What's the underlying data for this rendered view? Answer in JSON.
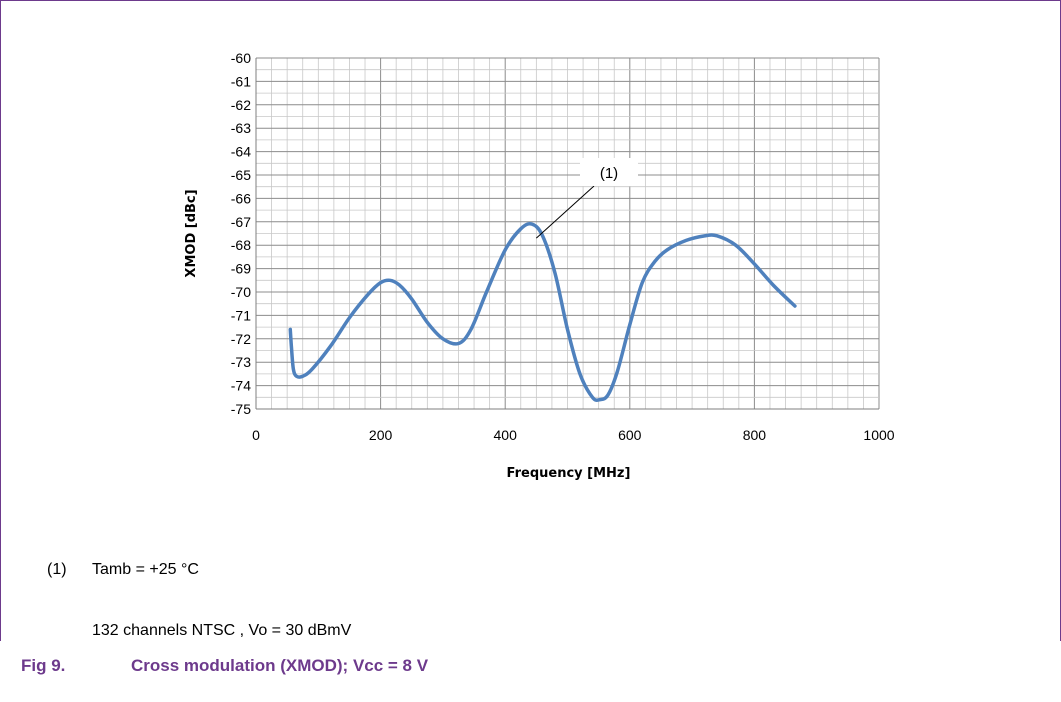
{
  "chart_data": {
    "type": "line",
    "xlabel": "Frequency [MHz]",
    "ylabel": "XMOD [dBc]",
    "xlim": [
      0,
      1000
    ],
    "ylim": [
      -75,
      -60
    ],
    "x_ticks": [
      "0",
      "200",
      "400",
      "600",
      "800",
      "1000"
    ],
    "y_ticks": [
      "-60",
      "-61",
      "-62",
      "-63",
      "-64",
      "-65",
      "-66",
      "-67",
      "-68",
      "-69",
      "-70",
      "-71",
      "-72",
      "-73",
      "-74",
      "-75"
    ],
    "grid": "major and minor",
    "series": [
      {
        "color": "#4f81bd",
        "x": [
          55,
          57,
          60,
          65,
          75,
          90,
          120,
          150,
          180,
          200,
          215,
          230,
          250,
          275,
          300,
          325,
          345,
          370,
          400,
          425,
          443,
          460,
          480,
          500,
          520,
          540,
          552,
          565,
          580,
          600,
          620,
          640,
          660,
          690,
          720,
          740,
          770,
          800,
          830,
          865
        ],
        "y": [
          -71.6,
          -72.4,
          -73.3,
          -73.6,
          -73.6,
          -73.3,
          -72.3,
          -71.1,
          -70.1,
          -69.6,
          -69.5,
          -69.7,
          -70.3,
          -71.3,
          -72.0,
          -72.2,
          -71.6,
          -70.0,
          -68.2,
          -67.3,
          -67.1,
          -67.6,
          -69.2,
          -71.6,
          -73.5,
          -74.5,
          -74.6,
          -74.4,
          -73.4,
          -71.4,
          -69.6,
          -68.7,
          -68.2,
          -67.8,
          -67.6,
          -67.6,
          -68.0,
          -68.8,
          -69.7,
          -70.6
        ]
      }
    ],
    "annotations": [
      {
        "text": "(1)",
        "x": 450,
        "y": -67.7
      }
    ]
  },
  "notes": {
    "marker": "(1)",
    "condition": "Tamb = +25 °C",
    "channels": "132 channels NTSC , Vo = 30 dBmV"
  },
  "caption": {
    "label": "Fig 9.",
    "title": "Cross modulation (XMOD); Vcc = 8 V"
  }
}
